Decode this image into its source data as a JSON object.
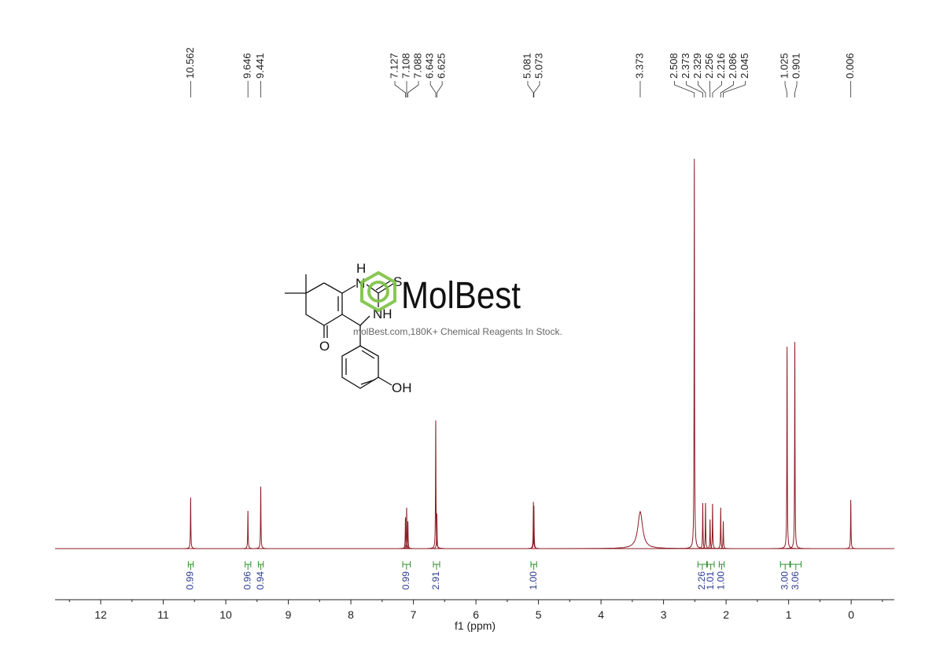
{
  "chart_data": {
    "type": "nmr",
    "x_label": "f1 (ppm)",
    "xlim": [
      12.73,
      -0.69
    ],
    "xticks": [
      12,
      11,
      10,
      9,
      8,
      7,
      6,
      5,
      4,
      3,
      2,
      1,
      0
    ],
    "xticks_minor": [
      12.5,
      11.5,
      10.5,
      9.5,
      8.5,
      7.5,
      6.5,
      5.5,
      4.5,
      3.5,
      2.5,
      1.5,
      0.5,
      -0.5
    ],
    "ylim": [
      0,
      100
    ],
    "color": "#8b1c24",
    "peaks": {
      "positions": [
        10.562,
        9.646,
        9.441,
        7.127,
        7.108,
        7.088,
        6.643,
        6.625,
        5.081,
        5.073,
        3.373,
        2.508,
        2.373,
        2.329,
        2.256,
        2.216,
        2.086,
        2.045,
        1.025,
        0.901,
        0.006
      ],
      "heights": [
        13.1,
        9.7,
        15.9,
        8,
        10.5,
        7,
        32.9,
        9,
        12,
        11,
        9.5,
        100,
        11.7,
        11.7,
        7.5,
        11.5,
        10.5,
        7,
        51.8,
        53,
        12.5
      ],
      "widths": [
        0.004,
        0.004,
        0.004,
        0.004,
        0.004,
        0.004,
        0.004,
        0.004,
        0.004,
        0.004,
        0.045,
        0.004,
        0.004,
        0.004,
        0.004,
        0.004,
        0.004,
        0.004,
        0.004,
        0.004,
        0.004
      ]
    },
    "integrals": {
      "ranges": [
        [
          10.6,
          10.52
        ],
        [
          9.69,
          9.6
        ],
        [
          9.48,
          9.4
        ],
        [
          7.17,
          7.05
        ],
        [
          6.68,
          6.58
        ],
        [
          5.12,
          5.03
        ],
        [
          2.45,
          2.31
        ],
        [
          2.3,
          2.19
        ],
        [
          2.11,
          2.03
        ],
        [
          1.13,
          0.98
        ],
        [
          0.97,
          0.8
        ]
      ],
      "values": [
        0.99,
        0.96,
        0.94,
        0.99,
        2.91,
        1,
        2.26,
        1.01,
        1,
        3,
        3.06
      ],
      "value_labels": [
        "0.99",
        "0.96",
        "0.94",
        "0.99",
        "2.91",
        "1.00",
        "2.26",
        "1.01",
        "1.00",
        "3.00",
        "3.06"
      ],
      "color": "#2f8f2f",
      "label_color": "#2b3990"
    }
  },
  "structure": {
    "atoms": [
      "H",
      "N",
      "S",
      "NH",
      "O",
      "OH"
    ]
  },
  "watermark": {
    "name": "MolBest",
    "tagline": "molBest.com,180K+ Chemical Reagents In Stock."
  }
}
